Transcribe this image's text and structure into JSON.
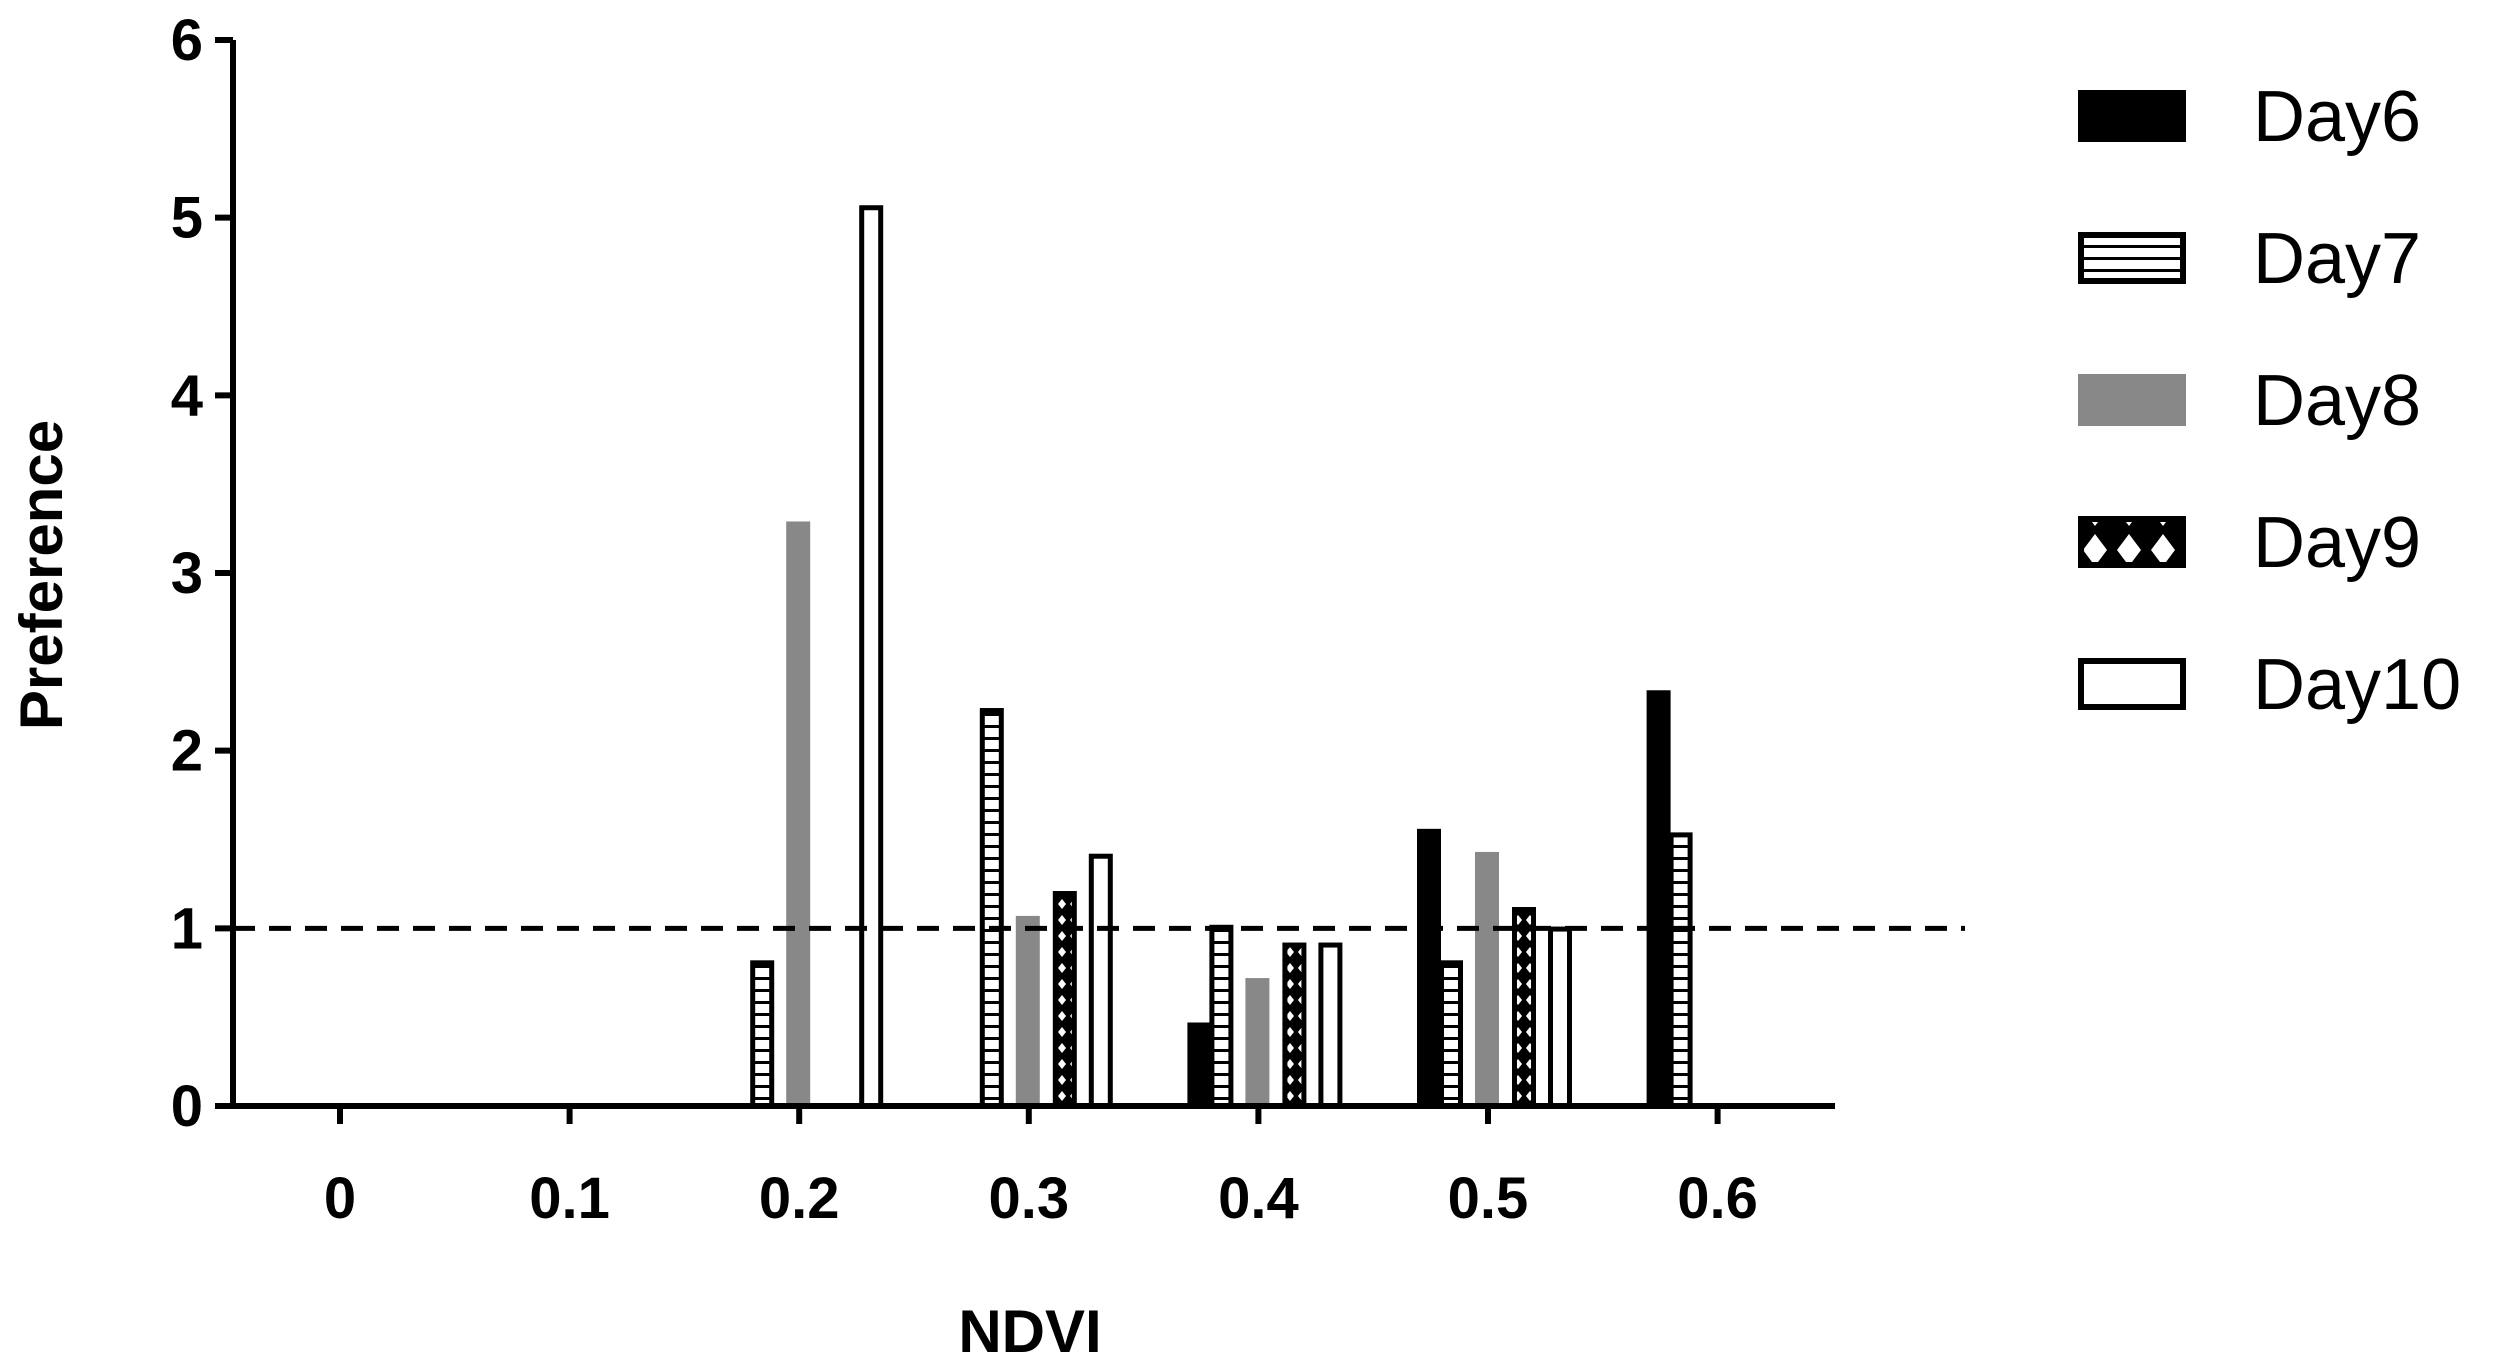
{
  "chart_data": {
    "type": "bar",
    "xlabel": "NDVI",
    "ylabel": "Preference",
    "ylim": [
      0,
      6
    ],
    "yticks": [
      "0",
      "1",
      "2",
      "3",
      "4",
      "5",
      "6"
    ],
    "categories": [
      "0",
      "0.1",
      "0.2",
      "0.3",
      "0.4",
      "0.5",
      "0.6"
    ],
    "series": [
      {
        "name": "Day6",
        "pattern": "solid-black",
        "values": [
          0,
          0,
          0,
          0,
          0.47,
          1.56,
          2.34
        ]
      },
      {
        "name": "Day7",
        "pattern": "h-stripes",
        "values": [
          0,
          0,
          0.82,
          2.24,
          1.02,
          0.82,
          1.54
        ]
      },
      {
        "name": "Day8",
        "pattern": "solid-gray",
        "values": [
          0,
          0,
          3.29,
          1.07,
          0.72,
          1.43,
          0
        ]
      },
      {
        "name": "Day9",
        "pattern": "cross-hatch",
        "values": [
          0,
          0,
          0,
          1.21,
          0.92,
          1.12,
          0
        ]
      },
      {
        "name": "Day10",
        "pattern": "hollow",
        "values": [
          0,
          0,
          5.07,
          1.42,
          0.92,
          1.01,
          0
        ]
      }
    ],
    "reference_line": {
      "value": 1,
      "style": "dashed"
    },
    "grid": false,
    "legend_position": "right",
    "colors": {
      "day6": "#000000",
      "day8": "#888888",
      "outline": "#000000"
    }
  }
}
